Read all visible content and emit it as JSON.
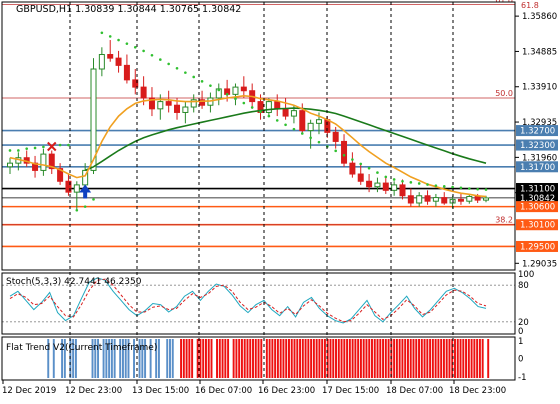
{
  "chart_data": {
    "type": "candlestick",
    "symbol_header": "GBPUSD,H1  1.30839 1.30844 1.30765 1.30842",
    "time_labels": [
      "12 Dec 2019",
      "12 Dec 23:00",
      "13 Dec 15:00",
      "16 Dec 07:00",
      "16 Dec 23:00",
      "17 Dec 15:00",
      "18 Dec 07:00",
      "18 Dec 23:00"
    ],
    "price_ticks": [
      "1.35860",
      "1.34885",
      "1.33910",
      "1.32935",
      "1.31960",
      "1.30985",
      "1.29035"
    ],
    "price_range": [
      1.2885,
      1.3625
    ],
    "fib_levels": [
      {
        "label": "61.8",
        "price": 1.3618
      },
      {
        "label": "50.0",
        "price": 1.336
      },
      {
        "label": "38.2",
        "price": 1.301
      }
    ],
    "horizontal_levels": [
      {
        "label": "1.32700",
        "price": 1.327,
        "color": "#4a7eb0"
      },
      {
        "label": "1.32300",
        "price": 1.323,
        "color": "#4a7eb0"
      },
      {
        "label": "1.31700",
        "price": 1.317,
        "color": "#4a7eb0"
      },
      {
        "label": "1.31100",
        "price": 1.311,
        "color": "#000000"
      },
      {
        "label": "1.30842",
        "price": 1.30842,
        "color": "#000000"
      },
      {
        "label": "1.30600",
        "price": 1.306,
        "color": "#ff5a14"
      },
      {
        "label": "1.30100",
        "price": 1.301,
        "color": "#ff5a14"
      },
      {
        "label": "1.29500",
        "price": 1.295,
        "color": "#ff5a14"
      }
    ],
    "vertical_markers": [
      "12 Dec 23:00",
      "13 Dec 15:00",
      "16 Dec 07:00",
      "16 Dec 23:00",
      "17 Dec 15:00",
      "18 Dec 07:00",
      "18 Dec 23:00"
    ],
    "candles": [
      {
        "o": 1.317,
        "h": 1.3195,
        "l": 1.315,
        "c": 1.318
      },
      {
        "o": 1.318,
        "h": 1.321,
        "l": 1.316,
        "c": 1.3195
      },
      {
        "o": 1.3195,
        "h": 1.3215,
        "l": 1.317,
        "c": 1.318
      },
      {
        "o": 1.318,
        "h": 1.32,
        "l": 1.314,
        "c": 1.316
      },
      {
        "o": 1.316,
        "h": 1.322,
        "l": 1.3145,
        "c": 1.3205
      },
      {
        "o": 1.3205,
        "h": 1.3215,
        "l": 1.315,
        "c": 1.3165
      },
      {
        "o": 1.3165,
        "h": 1.318,
        "l": 1.312,
        "c": 1.313
      },
      {
        "o": 1.313,
        "h": 1.315,
        "l": 1.309,
        "c": 1.31
      },
      {
        "o": 1.31,
        "h": 1.313,
        "l": 1.305,
        "c": 1.312
      },
      {
        "o": 1.312,
        "h": 1.318,
        "l": 1.311,
        "c": 1.316
      },
      {
        "o": 1.316,
        "h": 1.347,
        "l": 1.315,
        "c": 1.344
      },
      {
        "o": 1.344,
        "h": 1.35,
        "l": 1.342,
        "c": 1.348
      },
      {
        "o": 1.348,
        "h": 1.352,
        "l": 1.346,
        "c": 1.347
      },
      {
        "o": 1.347,
        "h": 1.349,
        "l": 1.343,
        "c": 1.345
      },
      {
        "o": 1.345,
        "h": 1.348,
        "l": 1.34,
        "c": 1.341
      },
      {
        "o": 1.341,
        "h": 1.344,
        "l": 1.337,
        "c": 1.339
      },
      {
        "o": 1.339,
        "h": 1.342,
        "l": 1.334,
        "c": 1.336
      },
      {
        "o": 1.336,
        "h": 1.339,
        "l": 1.331,
        "c": 1.333
      },
      {
        "o": 1.333,
        "h": 1.337,
        "l": 1.33,
        "c": 1.335
      },
      {
        "o": 1.335,
        "h": 1.338,
        "l": 1.332,
        "c": 1.334
      },
      {
        "o": 1.334,
        "h": 1.336,
        "l": 1.33,
        "c": 1.332
      },
      {
        "o": 1.332,
        "h": 1.335,
        "l": 1.329,
        "c": 1.3335
      },
      {
        "o": 1.3335,
        "h": 1.337,
        "l": 1.332,
        "c": 1.3355
      },
      {
        "o": 1.3355,
        "h": 1.338,
        "l": 1.333,
        "c": 1.334
      },
      {
        "o": 1.334,
        "h": 1.3375,
        "l": 1.332,
        "c": 1.336
      },
      {
        "o": 1.336,
        "h": 1.34,
        "l": 1.334,
        "c": 1.3385
      },
      {
        "o": 1.3385,
        "h": 1.341,
        "l": 1.335,
        "c": 1.337
      },
      {
        "o": 1.337,
        "h": 1.34,
        "l": 1.334,
        "c": 1.339
      },
      {
        "o": 1.339,
        "h": 1.342,
        "l": 1.336,
        "c": 1.338
      },
      {
        "o": 1.338,
        "h": 1.34,
        "l": 1.333,
        "c": 1.335
      },
      {
        "o": 1.335,
        "h": 1.337,
        "l": 1.33,
        "c": 1.332
      },
      {
        "o": 1.332,
        "h": 1.336,
        "l": 1.331,
        "c": 1.335
      },
      {
        "o": 1.335,
        "h": 1.337,
        "l": 1.331,
        "c": 1.333
      },
      {
        "o": 1.333,
        "h": 1.336,
        "l": 1.33,
        "c": 1.331
      },
      {
        "o": 1.331,
        "h": 1.334,
        "l": 1.329,
        "c": 1.3325
      },
      {
        "o": 1.3325,
        "h": 1.3345,
        "l": 1.326,
        "c": 1.327
      },
      {
        "o": 1.327,
        "h": 1.33,
        "l": 1.322,
        "c": 1.329
      },
      {
        "o": 1.329,
        "h": 1.332,
        "l": 1.326,
        "c": 1.33
      },
      {
        "o": 1.33,
        "h": 1.331,
        "l": 1.325,
        "c": 1.3265
      },
      {
        "o": 1.3265,
        "h": 1.328,
        "l": 1.322,
        "c": 1.324
      },
      {
        "o": 1.324,
        "h": 1.326,
        "l": 1.317,
        "c": 1.318
      },
      {
        "o": 1.318,
        "h": 1.321,
        "l": 1.314,
        "c": 1.315
      },
      {
        "o": 1.315,
        "h": 1.318,
        "l": 1.312,
        "c": 1.313
      },
      {
        "o": 1.313,
        "h": 1.315,
        "l": 1.31,
        "c": 1.3115
      },
      {
        "o": 1.3115,
        "h": 1.314,
        "l": 1.31,
        "c": 1.3125
      },
      {
        "o": 1.3125,
        "h": 1.3145,
        "l": 1.3095,
        "c": 1.3105
      },
      {
        "o": 1.3105,
        "h": 1.313,
        "l": 1.309,
        "c": 1.312
      },
      {
        "o": 1.312,
        "h": 1.3135,
        "l": 1.308,
        "c": 1.309
      },
      {
        "o": 1.309,
        "h": 1.311,
        "l": 1.306,
        "c": 1.307
      },
      {
        "o": 1.307,
        "h": 1.31,
        "l": 1.306,
        "c": 1.309
      },
      {
        "o": 1.309,
        "h": 1.3105,
        "l": 1.3065,
        "c": 1.3075
      },
      {
        "o": 1.3075,
        "h": 1.3095,
        "l": 1.306,
        "c": 1.3085
      },
      {
        "o": 1.3085,
        "h": 1.31,
        "l": 1.3065,
        "c": 1.307
      },
      {
        "o": 1.307,
        "h": 1.309,
        "l": 1.3055,
        "c": 1.308
      },
      {
        "o": 1.308,
        "h": 1.3095,
        "l": 1.3065,
        "c": 1.3075
      },
      {
        "o": 1.3075,
        "h": 1.3092,
        "l": 1.3068,
        "c": 1.3088
      },
      {
        "o": 1.3088,
        "h": 1.3095,
        "l": 1.307,
        "c": 1.3078
      },
      {
        "o": 1.3078,
        "h": 1.309,
        "l": 1.3072,
        "c": 1.3084
      }
    ],
    "ma_fast": [
      1.3195,
      1.319,
      1.3185,
      1.3178,
      1.3175,
      1.317,
      1.3162,
      1.315,
      1.314,
      1.3145,
      1.319,
      1.324,
      1.328,
      1.331,
      1.333,
      1.3345,
      1.3352,
      1.3355,
      1.3356,
      1.3355,
      1.3352,
      1.335,
      1.335,
      1.3351,
      1.3352,
      1.3356,
      1.336,
      1.3363,
      1.3366,
      1.3364,
      1.3358,
      1.3355,
      1.3352,
      1.3346,
      1.334,
      1.333,
      1.3318,
      1.331,
      1.33,
      1.3288,
      1.327,
      1.325,
      1.323,
      1.3212,
      1.3196,
      1.318,
      1.3168,
      1.3155,
      1.3142,
      1.3132,
      1.3122,
      1.3115,
      1.3108,
      1.3102,
      1.3097,
      1.3094,
      1.309,
      1.3088
    ],
    "ma_slow": [
      null,
      null,
      null,
      null,
      null,
      null,
      null,
      null,
      null,
      1.316,
      1.317,
      1.3185,
      1.32,
      1.3215,
      1.3228,
      1.324,
      1.325,
      1.3258,
      1.3265,
      1.3272,
      1.3278,
      1.3283,
      1.3288,
      1.3293,
      1.3298,
      1.3303,
      1.3308,
      1.3313,
      1.3318,
      1.3322,
      1.3325,
      1.3328,
      1.333,
      1.3331,
      1.3332,
      1.3331,
      1.3329,
      1.3326,
      1.3322,
      1.3317,
      1.331,
      1.3302,
      1.3294,
      1.3286,
      1.3278,
      1.327,
      1.3262,
      1.3254,
      1.3246,
      1.3238,
      1.323,
      1.3222,
      1.3214,
      1.3206,
      1.3199,
      1.3192,
      1.3186,
      1.318
    ],
    "psar": [
      1.3215,
      1.3215,
      1.322,
      1.3222,
      1.3225,
      1.3225,
      1.323,
      1.323,
      1.305,
      1.306,
      1.308,
      1.354,
      1.353,
      1.352,
      1.351,
      1.35,
      1.349,
      1.3478,
      1.3466,
      1.3454,
      1.3442,
      1.343,
      1.3418,
      1.3406,
      1.3394,
      1.3382,
      1.337,
      1.3358,
      1.3346,
      1.3334,
      1.3322,
      1.331,
      1.3298,
      1.3286,
      1.3274,
      1.3262,
      1.325,
      1.3238,
      1.3226,
      1.3214,
      1.3202,
      1.319,
      1.3178,
      1.3166,
      1.3154,
      1.3142,
      1.3135,
      1.313,
      1.3127,
      1.3124,
      1.3121,
      1.3118,
      1.3116,
      1.3114,
      1.3112,
      1.311,
      1.3108,
      1.3107
    ],
    "signal_arrows": [
      {
        "type": "buy",
        "candle": 9
      },
      {
        "type": "sell",
        "candle": 5
      }
    ],
    "stoch": {
      "label": "Stoch(5,3,3) 42.7441 46.2350",
      "levels": [
        "100",
        "80",
        "20",
        "0"
      ],
      "main": [
        62,
        70,
        55,
        40,
        52,
        68,
        35,
        22,
        30,
        58,
        85,
        92,
        88,
        70,
        55,
        40,
        30,
        38,
        50,
        48,
        36,
        45,
        62,
        70,
        55,
        70,
        82,
        78,
        64,
        46,
        35,
        48,
        55,
        40,
        30,
        45,
        28,
        52,
        60,
        42,
        30,
        22,
        18,
        25,
        40,
        55,
        30,
        20,
        35,
        48,
        62,
        42,
        28,
        40,
        55,
        70,
        75,
        68,
        58,
        45,
        42
      ],
      "signal": [
        58,
        66,
        60,
        48,
        50,
        62,
        45,
        30,
        28,
        48,
        72,
        88,
        90,
        80,
        64,
        48,
        36,
        36,
        44,
        46,
        40,
        42,
        55,
        66,
        60,
        66,
        78,
        80,
        70,
        52,
        40,
        44,
        52,
        45,
        34,
        42,
        32,
        46,
        56,
        46,
        34,
        26,
        20,
        22,
        34,
        48,
        36,
        24,
        30,
        42,
        56,
        46,
        32,
        36,
        50,
        64,
        72,
        70,
        62,
        50,
        46
      ]
    },
    "flat_trend": {
      "label": "Flat Trend V2(Current Timeframe)",
      "ticks": [
        "1",
        "0",
        "-1"
      ],
      "bars": [
        0,
        0,
        0,
        0,
        0,
        0,
        0,
        0,
        0,
        0,
        0,
        0,
        0,
        0,
        0,
        0,
        1,
        0,
        1,
        0,
        0,
        1,
        1,
        0,
        1,
        1,
        1,
        0,
        0,
        0,
        0,
        0,
        1,
        1,
        1,
        0,
        1,
        1,
        1,
        1,
        1,
        0,
        1,
        1,
        1,
        1,
        0,
        1,
        0,
        1,
        1,
        1,
        0,
        1,
        0,
        1,
        1,
        0,
        0,
        1,
        1,
        1,
        0,
        0,
        2,
        2,
        2,
        2,
        2,
        0,
        2,
        2,
        2,
        2,
        2,
        2,
        0,
        2,
        2,
        2,
        2,
        2,
        0,
        2,
        2,
        2,
        2,
        2,
        2,
        2,
        2,
        2,
        2,
        2,
        0,
        2,
        2,
        2,
        2,
        2,
        2,
        2,
        2,
        2,
        2,
        2,
        2,
        2,
        2,
        2,
        2,
        2,
        2,
        2,
        2,
        2,
        2,
        2,
        2,
        2,
        2,
        2,
        2,
        2,
        2,
        2,
        2,
        2,
        2,
        2,
        2,
        2,
        2,
        2,
        2,
        2,
        2,
        2,
        2,
        2,
        2,
        2,
        2,
        2,
        2,
        2,
        2,
        2,
        2,
        2,
        2,
        2,
        2,
        2,
        2,
        2,
        2,
        2,
        2,
        2,
        2,
        2,
        2,
        2,
        2,
        2,
        2,
        2,
        2,
        2,
        2,
        2,
        2,
        2,
        0,
        2
      ]
    }
  }
}
